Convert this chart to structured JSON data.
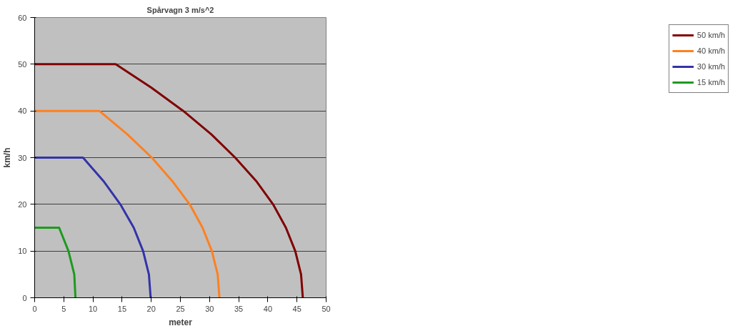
{
  "chart_data": {
    "type": "line",
    "title": "Spårvagn 3 m/s^2",
    "xlabel": "meter",
    "ylabel": "km/h",
    "xlim": [
      0,
      50
    ],
    "xticks": [
      0,
      5,
      10,
      15,
      20,
      25,
      30,
      35,
      40,
      45,
      50
    ],
    "ylim": [
      0,
      60
    ],
    "yticks": [
      0,
      10,
      20,
      30,
      40,
      50,
      60
    ],
    "grid": "y",
    "legend": "right",
    "marker": "none",
    "line_style": "solid",
    "series": [
      {
        "name": "50 km/h",
        "color": "#800000",
        "x": [
          0,
          13.9,
          20.0,
          25.5,
          30.3,
          34.4,
          38.0,
          40.9,
          43.1,
          44.7,
          45.7,
          46.0
        ],
        "values": [
          50,
          50,
          45,
          40,
          35,
          30,
          25,
          20,
          15,
          10,
          5,
          0
        ]
      },
      {
        "name": "40 km/h",
        "color": "#ff8020",
        "x": [
          0,
          11.1,
          15.9,
          20.1,
          23.6,
          26.6,
          28.8,
          30.4,
          31.4,
          31.7
        ],
        "values": [
          40,
          40,
          35,
          30,
          25,
          20,
          15,
          10,
          5,
          0
        ]
      },
      {
        "name": "30 km/h",
        "color": "#3333aa",
        "x": [
          0,
          8.3,
          11.8,
          14.7,
          17.0,
          18.6,
          19.6,
          19.9
        ],
        "values": [
          30,
          30,
          25,
          20,
          15,
          10,
          5,
          0
        ]
      },
      {
        "name": "15 km/h",
        "color": "#1e9a1e",
        "x": [
          0,
          4.2,
          5.8,
          6.8,
          7.0
        ],
        "values": [
          15,
          15,
          10,
          5,
          0
        ]
      }
    ]
  }
}
